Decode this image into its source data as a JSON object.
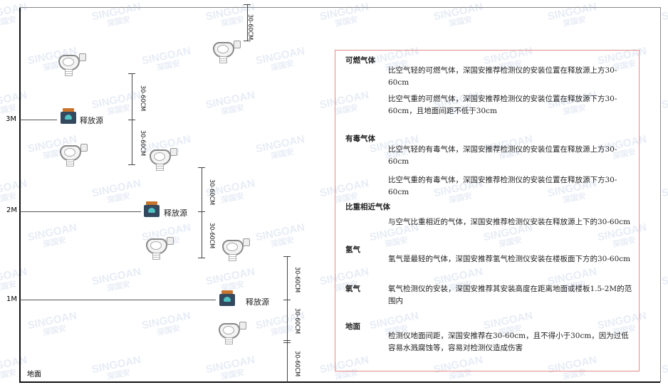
{
  "watermark": {
    "brand": "SINGOAN",
    "chinese": "深国安"
  },
  "levels": {
    "l3": "3M",
    "l2": "2M",
    "l1": "1M",
    "ground": "地面"
  },
  "source_label": "释放源",
  "dimension_label": "30-60CM",
  "colors": {
    "panel_border": "#e58a8a",
    "source_cap": "#c8742c",
    "source_body": "#34495e",
    "source_face": "#4fc3c3"
  },
  "panel": {
    "sections": [
      {
        "heading": "可燃气体",
        "paragraphs": [
          "比空气轻的可燃气体，深国安推荐检测仪的安装位置在释放源上方30-60cm",
          "比空气重的可燃气体，深国安推荐检测仪的安装位置在释放源下方30-60cm，且地面间距不低于30cm"
        ]
      },
      {
        "heading": "有毒气体",
        "paragraphs": [
          "比空气轻的有毒气体，深国安推荐检测仪的安装位置在释放源上方30-60cm",
          "比空气重的有毒气体，深国安推荐检测仪的安装位置在释放源下方30-60cm"
        ]
      },
      {
        "heading": "比重相近气体",
        "paragraphs": [
          "与空气比重相近的气体，深国安推荐检测仪安装在释放源上下的30-60cm"
        ]
      },
      {
        "heading": "氢气",
        "paragraphs": [
          "氢气是最轻的气体，深国安推荐氢气检测仪安装在楼板面下方的30-60cm"
        ]
      },
      {
        "heading": "氧气",
        "paragraphs": [
          "氧气检测仪的安装，深国安推荐其安装高度在距离地面或楼板1.5-2M的范围内"
        ]
      },
      {
        "heading": "地面",
        "paragraphs": [
          "检测仪地面间距，深国安推荐在30-60cm，且不得小于30cm，因为过低容易水溅腐蚀等，容易对检测仪造成伤害"
        ]
      }
    ]
  }
}
